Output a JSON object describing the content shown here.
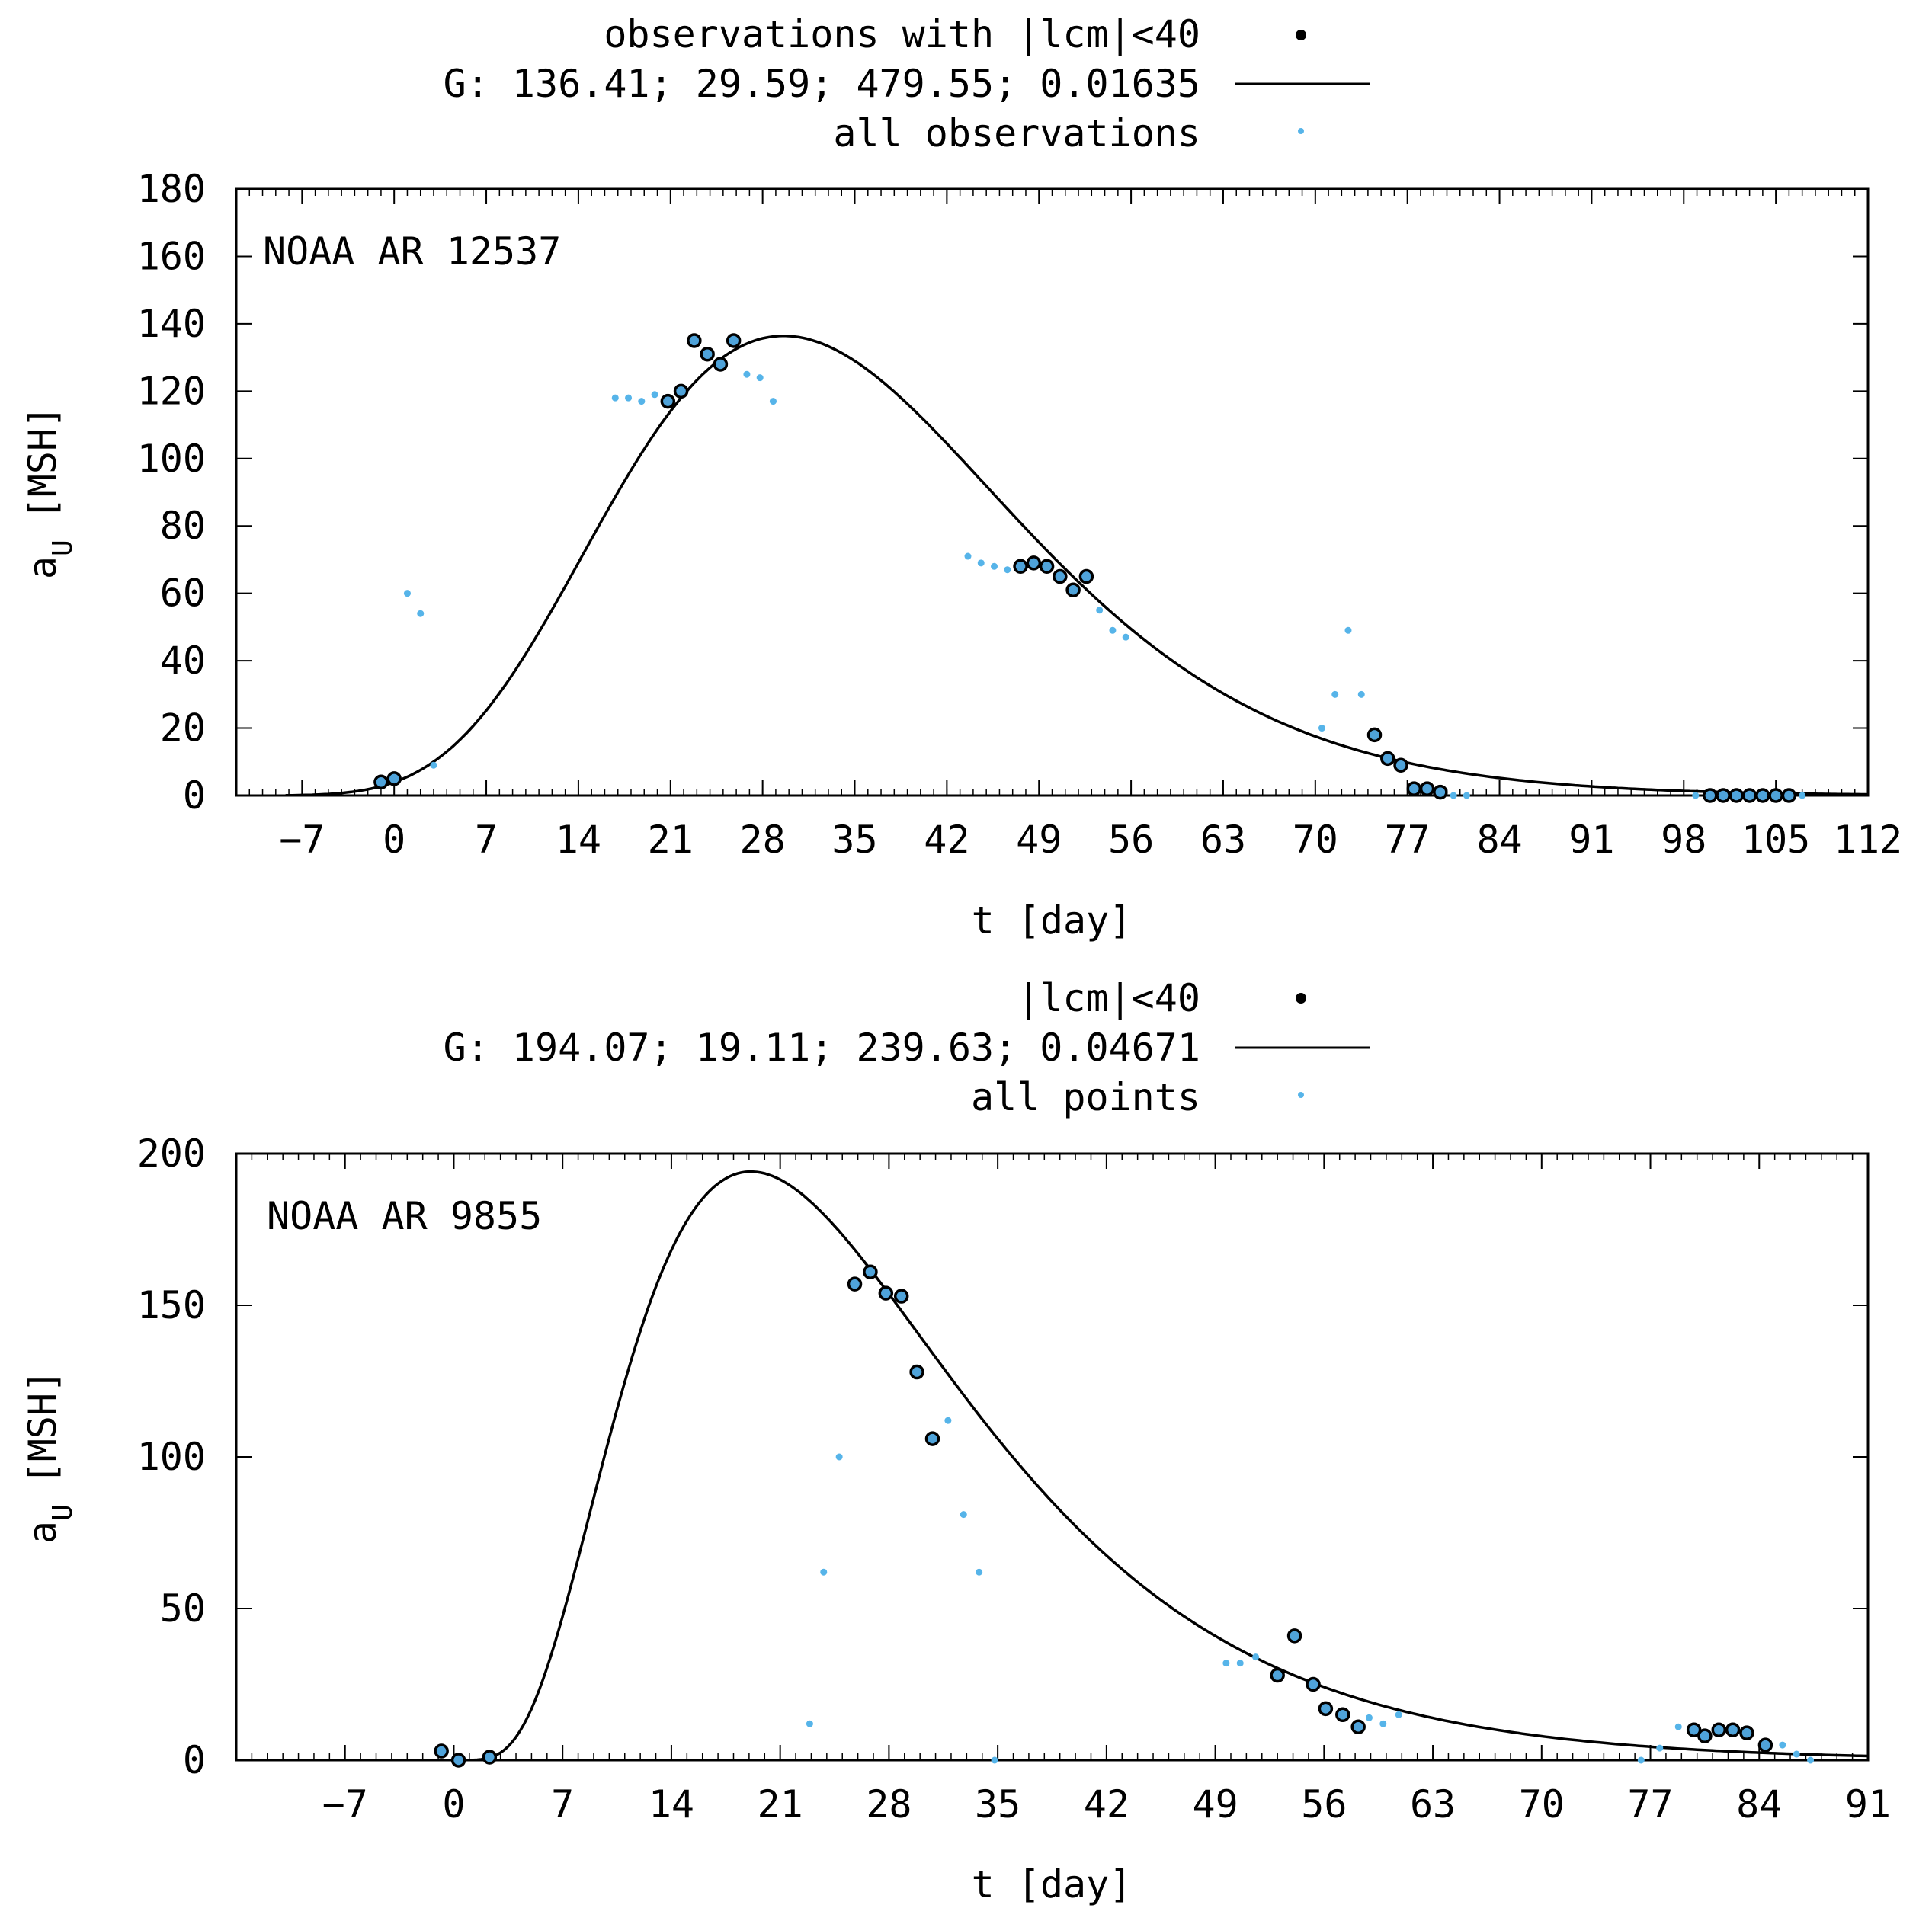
{
  "chart_data": [
    {
      "type": "scatter",
      "annotation": "NOAA AR 12537",
      "xlabel": "t [day]",
      "ylabel_main": "a",
      "ylabel_sub": "U",
      "ylabel_rest": "[MSH]",
      "xlim": [
        -12,
        112
      ],
      "ylim": [
        0,
        180
      ],
      "xticks": [
        -7,
        0,
        7,
        14,
        21,
        28,
        35,
        42,
        49,
        56,
        63,
        70,
        77,
        84,
        91,
        98,
        105,
        112
      ],
      "yticks": [
        0,
        20,
        40,
        60,
        80,
        100,
        120,
        140,
        160,
        180
      ],
      "legend_position": "top",
      "legend": {
        "observed": "observations with |lcm|<40",
        "fit": "G: 136.41; 29.59; 479.55; 0.01635",
        "all": "all observations"
      },
      "fit_params": {
        "amplitude": 136.41,
        "t_max": 29.59,
        "width_param": 479.55,
        "asym": 0.01635
      },
      "series": [
        {
          "kind": "observed",
          "points": [
            [
              -1,
              4
            ],
            [
              0,
              5
            ],
            [
              20.8,
              117
            ],
            [
              21.8,
              120
            ],
            [
              22.8,
              135
            ],
            [
              23.8,
              131
            ],
            [
              24.8,
              128
            ],
            [
              25.8,
              135
            ],
            [
              47.6,
              68
            ],
            [
              48.6,
              69
            ],
            [
              49.6,
              68
            ],
            [
              50.6,
              65
            ],
            [
              51.6,
              61
            ],
            [
              52.6,
              65
            ],
            [
              74.5,
              18
            ],
            [
              75.5,
              11
            ],
            [
              76.5,
              9
            ],
            [
              77.5,
              2
            ],
            [
              78.5,
              2
            ],
            [
              79.5,
              1
            ],
            [
              100,
              0
            ],
            [
              101,
              0
            ],
            [
              102,
              0
            ],
            [
              103,
              0
            ],
            [
              104,
              0
            ],
            [
              105,
              0
            ],
            [
              106,
              0
            ]
          ]
        },
        {
          "kind": "all",
          "points": [
            [
              1,
              60
            ],
            [
              2,
              54
            ],
            [
              3,
              9
            ],
            [
              16.8,
              118
            ],
            [
              17.8,
              118
            ],
            [
              18.8,
              117
            ],
            [
              19.8,
              119
            ],
            [
              26.8,
              125
            ],
            [
              27.8,
              124
            ],
            [
              28.8,
              117
            ],
            [
              43.6,
              71
            ],
            [
              44.6,
              69
            ],
            [
              45.6,
              68
            ],
            [
              46.6,
              67
            ],
            [
              53.6,
              55
            ],
            [
              54.6,
              49
            ],
            [
              55.6,
              47
            ],
            [
              70.5,
              20
            ],
            [
              71.5,
              30
            ],
            [
              72.5,
              49
            ],
            [
              73.5,
              30
            ],
            [
              80.5,
              0
            ],
            [
              81.5,
              0
            ],
            [
              98.9,
              0
            ],
            [
              107,
              0
            ]
          ]
        }
      ]
    },
    {
      "type": "scatter",
      "annotation": "NOAA AR 9855",
      "xlabel": "t [day]",
      "ylabel_main": "a",
      "ylabel_sub": "U",
      "ylabel_rest": "[MSH]",
      "xlim": [
        -14,
        91
      ],
      "ylim": [
        0,
        200
      ],
      "xticks": [
        -7,
        0,
        7,
        14,
        21,
        28,
        35,
        42,
        49,
        56,
        63,
        70,
        77,
        84,
        91
      ],
      "yticks": [
        0,
        50,
        100,
        150,
        200
      ],
      "legend_position": "top",
      "legend": {
        "observed": "|lcm|<40",
        "fit": "G: 194.07; 19.11; 239.63; 0.04671",
        "all": "all points"
      },
      "fit_params": {
        "amplitude": 194.07,
        "t_max": 19.11,
        "width_param": 239.63,
        "asym": 0.04671
      },
      "series": [
        {
          "kind": "observed",
          "points": [
            [
              -0.8,
              3
            ],
            [
              0.3,
              0
            ],
            [
              2.3,
              1
            ],
            [
              25.8,
              157
            ],
            [
              26.8,
              161
            ],
            [
              27.8,
              154
            ],
            [
              28.8,
              153
            ],
            [
              29.8,
              128
            ],
            [
              30.8,
              106
            ],
            [
              53,
              28
            ],
            [
              54.1,
              41
            ],
            [
              55.3,
              25
            ],
            [
              56.1,
              17
            ],
            [
              57.2,
              15
            ],
            [
              58.2,
              11
            ],
            [
              79.8,
              10
            ],
            [
              80.5,
              8
            ],
            [
              81.4,
              10
            ],
            [
              82.3,
              10
            ],
            [
              83.2,
              9
            ],
            [
              84.4,
              5
            ]
          ]
        },
        {
          "kind": "all",
          "points": [
            [
              22.9,
              12
            ],
            [
              23.8,
              62
            ],
            [
              24.8,
              100
            ],
            [
              31.8,
              112
            ],
            [
              32.8,
              81
            ],
            [
              33.8,
              62
            ],
            [
              34.8,
              0
            ],
            [
              49.7,
              32
            ],
            [
              50.6,
              32
            ],
            [
              51.6,
              34
            ],
            [
              58.9,
              14
            ],
            [
              59.8,
              12
            ],
            [
              60.8,
              15
            ],
            [
              76.4,
              0
            ],
            [
              77.6,
              4
            ],
            [
              78.8,
              11
            ],
            [
              85.5,
              5
            ],
            [
              86.4,
              2
            ],
            [
              87.3,
              0
            ]
          ]
        }
      ]
    }
  ]
}
